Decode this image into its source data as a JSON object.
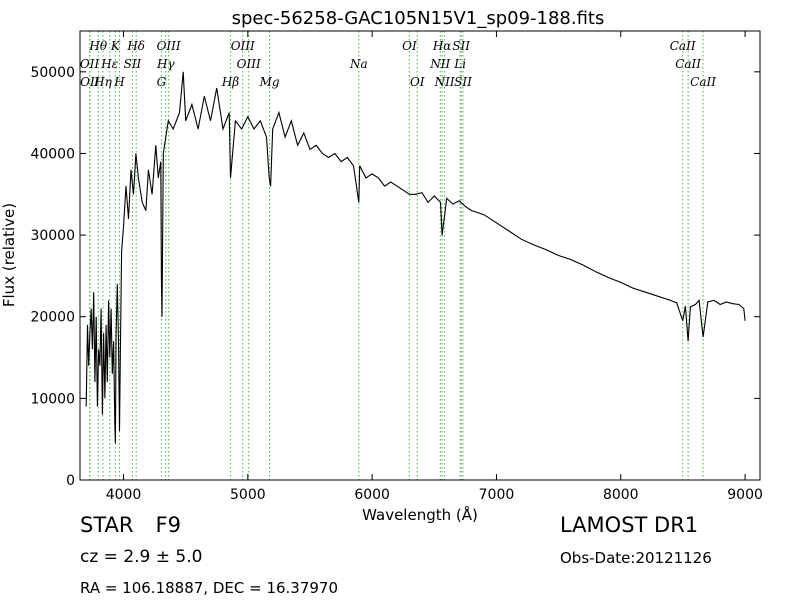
{
  "chart_data": {
    "type": "line",
    "title": "spec-56258-GAC105N15V1_sp09-188.fits",
    "xlabel": "Wavelength (Å)",
    "ylabel": "Flux (relative)",
    "xlim": [
      3650,
      9120
    ],
    "ylim": [
      0,
      55000
    ],
    "x_ticks": [
      4000,
      5000,
      6000,
      7000,
      8000,
      9000
    ],
    "y_ticks": [
      0,
      10000,
      20000,
      30000,
      40000,
      50000
    ],
    "grid": false,
    "series_color": "#000000",
    "line_marker_color": "#4caf50",
    "series": [
      {
        "x": [
          3700,
          3710,
          3720,
          3730,
          3740,
          3750,
          3760,
          3770,
          3780,
          3790,
          3800,
          3810,
          3820,
          3830,
          3840,
          3850,
          3860,
          3870,
          3880,
          3890,
          3900,
          3910,
          3920,
          3930,
          3935,
          3940,
          3950,
          3960,
          3968,
          3975,
          3985,
          4000,
          4020,
          4040,
          4060,
          4080,
          4100,
          4120,
          4150,
          4180,
          4200,
          4230,
          4260,
          4280,
          4300,
          4305,
          4310,
          4320,
          4340,
          4360,
          4400,
          4450,
          4480,
          4500,
          4550,
          4600,
          4650,
          4700,
          4750,
          4800,
          4850,
          4861,
          4900,
          4950,
          5000,
          5050,
          5100,
          5150,
          5172,
          5183,
          5200,
          5250,
          5300,
          5350,
          5400,
          5450,
          5500,
          5550,
          5600,
          5650,
          5700,
          5750,
          5800,
          5850,
          5893,
          5900,
          5950,
          6000,
          6050,
          6100,
          6150,
          6200,
          6250,
          6300,
          6350,
          6400,
          6450,
          6500,
          6550,
          6563,
          6600,
          6650,
          6700,
          6750,
          6800,
          6900,
          7000,
          7100,
          7200,
          7300,
          7400,
          7500,
          7600,
          7700,
          7800,
          7900,
          8000,
          8100,
          8200,
          8300,
          8400,
          8450,
          8498,
          8520,
          8542,
          8560,
          8600,
          8630,
          8662,
          8700,
          8750,
          8800,
          8850,
          8900,
          8950,
          8990,
          9000
        ],
        "y": [
          9000,
          19000,
          14000,
          18000,
          21000,
          16000,
          23000,
          12000,
          20000,
          9000,
          16000,
          14000,
          21000,
          8000,
          18000,
          10000,
          19000,
          12000,
          22000,
          15000,
          21000,
          13000,
          17000,
          7000,
          4500,
          18000,
          24000,
          17000,
          6000,
          16000,
          28000,
          31000,
          36000,
          32000,
          38000,
          35000,
          40000,
          37000,
          34000,
          33000,
          38000,
          35000,
          41000,
          37000,
          39000,
          25000,
          20000,
          40000,
          42000,
          44000,
          43000,
          45000,
          50000,
          44000,
          46000,
          43000,
          47000,
          44000,
          48000,
          43000,
          45000,
          37000,
          44000,
          43000,
          44500,
          43000,
          44000,
          42000,
          37000,
          36000,
          43000,
          45000,
          42000,
          44000,
          41000,
          42500,
          40500,
          41000,
          40000,
          39500,
          40000,
          39000,
          39500,
          38500,
          34000,
          38500,
          37000,
          37500,
          37000,
          36000,
          36500,
          36000,
          35500,
          35000,
          35000,
          35200,
          34000,
          34800,
          34000,
          30000,
          34500,
          33800,
          34200,
          33500,
          33000,
          32500,
          31500,
          30500,
          29500,
          28800,
          28200,
          27500,
          27000,
          26300,
          25500,
          24800,
          24200,
          23500,
          23000,
          22500,
          22000,
          21700,
          19500,
          21300,
          17000,
          21200,
          21500,
          22000,
          17500,
          21800,
          22000,
          21500,
          21800,
          21600,
          21500,
          21000,
          19500
        ]
      }
    ],
    "annotations": [
      {
        "label": "Hθ",
        "x": 3797,
        "row": 1
      },
      {
        "label": "K",
        "x": 3934,
        "row": 1
      },
      {
        "label": "Hδ",
        "x": 4102,
        "row": 1
      },
      {
        "label": "OIII",
        "x": 4363,
        "row": 1
      },
      {
        "label": "OIII",
        "x": 4959,
        "row": 1
      },
      {
        "label": "OI",
        "x": 6300,
        "row": 1
      },
      {
        "label": "Hα",
        "x": 6563,
        "row": 1
      },
      {
        "label": "SII",
        "x": 6716,
        "row": 1
      },
      {
        "label": "CaII",
        "x": 8498,
        "row": 1
      },
      {
        "label": "OII",
        "x": 3727,
        "row": 2
      },
      {
        "label": "Hε",
        "x": 3889,
        "row": 2
      },
      {
        "label": "SII",
        "x": 4072,
        "row": 2
      },
      {
        "label": "Hγ",
        "x": 4340,
        "row": 2
      },
      {
        "label": "OIII",
        "x": 5007,
        "row": 2
      },
      {
        "label": "Na",
        "x": 5893,
        "row": 2
      },
      {
        "label": "NII",
        "x": 6548,
        "row": 2
      },
      {
        "label": "Li",
        "x": 6708,
        "row": 2
      },
      {
        "label": "CaII",
        "x": 8542,
        "row": 2
      },
      {
        "label": "OII",
        "x": 3729,
        "row": 3
      },
      {
        "label": "Hη",
        "x": 3835,
        "row": 3
      },
      {
        "label": "H",
        "x": 3968,
        "row": 3
      },
      {
        "label": "G",
        "x": 4305,
        "row": 3
      },
      {
        "label": "Hβ",
        "x": 4861,
        "row": 3
      },
      {
        "label": "Mg",
        "x": 5175,
        "row": 3
      },
      {
        "label": "OI",
        "x": 6363,
        "row": 3
      },
      {
        "label": "NII",
        "x": 6583,
        "row": 3
      },
      {
        "label": "SII",
        "x": 6731,
        "row": 3
      },
      {
        "label": "CaII",
        "x": 8662,
        "row": 3
      }
    ],
    "line_markers": [
      3727,
      3729,
      3797,
      3835,
      3889,
      3934,
      3968,
      4072,
      4102,
      4305,
      4340,
      4363,
      4861,
      4959,
      5007,
      5175,
      5893,
      6300,
      6363,
      6548,
      6563,
      6583,
      6708,
      6716,
      6731,
      8498,
      8542,
      8662
    ]
  },
  "info": {
    "object_type": "STAR",
    "subclass": "F9",
    "survey": "LAMOST DR1",
    "cz": "cz = 2.9 ± 5.0",
    "obs_date": "Obs-Date:20121126",
    "coords": "RA = 106.18887, DEC = 16.37970"
  }
}
